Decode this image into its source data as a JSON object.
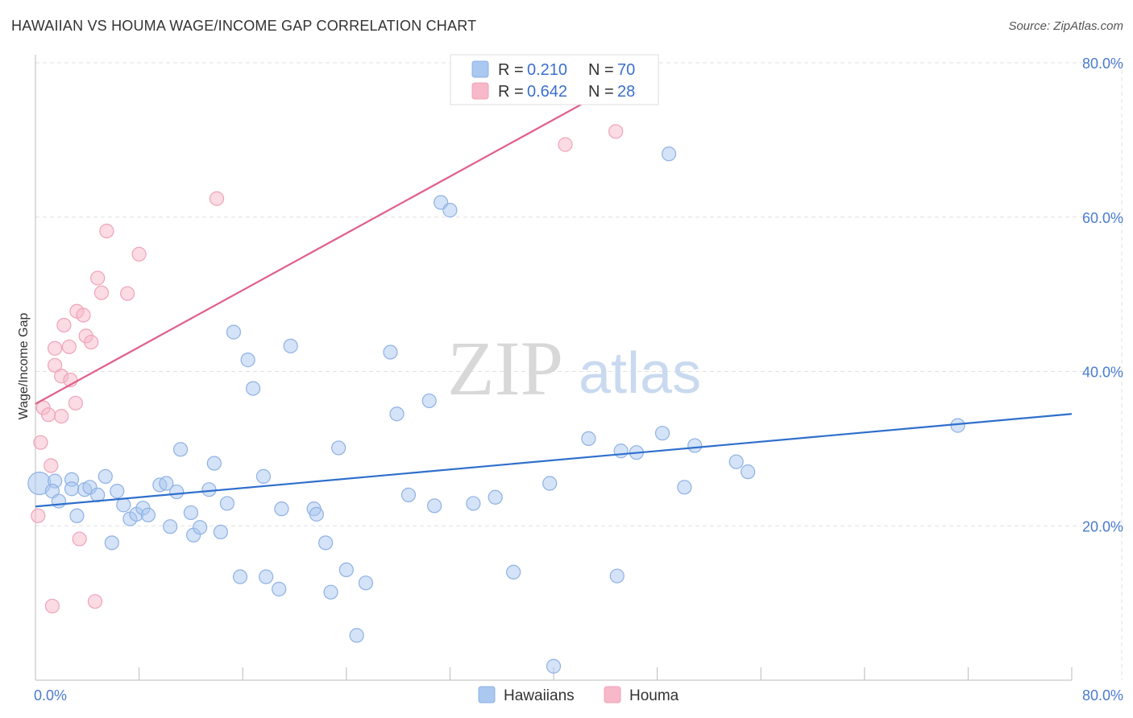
{
  "title": "HAWAIIAN VS HOUMA WAGE/INCOME GAP CORRELATION CHART",
  "source": "Source: ZipAtlas.com",
  "watermark": {
    "part1": "ZIP",
    "part2": "atlas"
  },
  "colors": {
    "hawaiians_fill": "#aac8f0",
    "hawaiians_line": "#2f6fcc",
    "houma_fill": "#f7b8ca",
    "houma_line": "#e0608a",
    "tick": "#4a7bd0",
    "grid": "#e0e0e0"
  },
  "legend": {
    "r_label": "R =",
    "n_label": "N =",
    "rows": [
      {
        "r": "0.210",
        "n": "70"
      },
      {
        "r": "0.642",
        "n": "28"
      }
    ]
  },
  "chart_data": {
    "type": "scatter",
    "xlabel": "",
    "ylabel": "Wage/Income Gap",
    "xlim": [
      0,
      80
    ],
    "ylim": [
      0,
      80
    ],
    "x_tick_labels": [
      "0.0%",
      "80.0%"
    ],
    "y_tick_labels": [
      "20.0%",
      "40.0%",
      "60.0%",
      "80.0%"
    ],
    "y_ticks": [
      20,
      40,
      60,
      80
    ],
    "grid": true,
    "legend_position": "top-center",
    "series": [
      {
        "name": "Hawaiians",
        "trend": [
          [
            0,
            22.5
          ],
          [
            80,
            34.5
          ]
        ],
        "points": [
          [
            0.3,
            25.5
          ],
          [
            1.5,
            25.8
          ],
          [
            2.8,
            26
          ],
          [
            1.3,
            24.5
          ],
          [
            1.8,
            23.2
          ],
          [
            2.8,
            24.8
          ],
          [
            3.2,
            21.3
          ],
          [
            3.8,
            24.7
          ],
          [
            4.2,
            25
          ],
          [
            4.8,
            24
          ],
          [
            5.4,
            26.4
          ],
          [
            5.9,
            17.8
          ],
          [
            6.3,
            24.5
          ],
          [
            6.8,
            22.7
          ],
          [
            7.3,
            20.9
          ],
          [
            7.8,
            21.5
          ],
          [
            8.3,
            22.3
          ],
          [
            8.7,
            21.4
          ],
          [
            9.6,
            25.3
          ],
          [
            10.1,
            25.5
          ],
          [
            10.4,
            19.9
          ],
          [
            10.9,
            24.4
          ],
          [
            11.2,
            29.9
          ],
          [
            12.0,
            21.7
          ],
          [
            12.2,
            18.8
          ],
          [
            12.7,
            19.8
          ],
          [
            13.4,
            24.7
          ],
          [
            13.8,
            28.1
          ],
          [
            14.3,
            19.2
          ],
          [
            14.8,
            22.9
          ],
          [
            15.3,
            45.1
          ],
          [
            15.8,
            13.4
          ],
          [
            16.4,
            41.5
          ],
          [
            16.8,
            37.8
          ],
          [
            17.6,
            26.4
          ],
          [
            17.8,
            13.4
          ],
          [
            18.8,
            11.8
          ],
          [
            19.0,
            22.2
          ],
          [
            19.7,
            43.3
          ],
          [
            21.5,
            22.2
          ],
          [
            21.7,
            21.5
          ],
          [
            22.4,
            17.8
          ],
          [
            22.8,
            11.4
          ],
          [
            23.4,
            30.1
          ],
          [
            24.0,
            14.3
          ],
          [
            24.8,
            5.8
          ],
          [
            25.5,
            12.6
          ],
          [
            27.4,
            42.5
          ],
          [
            27.9,
            34.5
          ],
          [
            28.8,
            24
          ],
          [
            30.4,
            36.2
          ],
          [
            30.8,
            22.6
          ],
          [
            31.3,
            61.9
          ],
          [
            32.0,
            60.9
          ],
          [
            33.8,
            22.9
          ],
          [
            35.5,
            23.7
          ],
          [
            36.9,
            14
          ],
          [
            39.7,
            25.5
          ],
          [
            40.0,
            1.8
          ],
          [
            42.7,
            31.3
          ],
          [
            44.9,
            13.5
          ],
          [
            45.2,
            29.7
          ],
          [
            46.4,
            29.5
          ],
          [
            48.4,
            32
          ],
          [
            48.9,
            68.2
          ],
          [
            50.1,
            25
          ],
          [
            50.9,
            30.4
          ],
          [
            54.1,
            28.3
          ],
          [
            55.0,
            27
          ],
          [
            71.2,
            33
          ]
        ]
      },
      {
        "name": "Houma",
        "trend": [
          [
            0,
            35.8
          ],
          [
            48,
            80
          ]
        ],
        "points": [
          [
            0.2,
            21.3
          ],
          [
            0.4,
            30.8
          ],
          [
            0.6,
            35.3
          ],
          [
            1.0,
            34.4
          ],
          [
            1.2,
            27.8
          ],
          [
            1.3,
            9.6
          ],
          [
            1.5,
            40.8
          ],
          [
            1.5,
            43
          ],
          [
            2.0,
            34.2
          ],
          [
            2.0,
            39.4
          ],
          [
            2.2,
            46
          ],
          [
            2.6,
            43.2
          ],
          [
            2.7,
            38.9
          ],
          [
            3.1,
            35.9
          ],
          [
            3.2,
            47.8
          ],
          [
            3.4,
            18.3
          ],
          [
            3.7,
            47.3
          ],
          [
            3.9,
            44.6
          ],
          [
            4.3,
            43.8
          ],
          [
            4.6,
            10.2
          ],
          [
            4.8,
            52.1
          ],
          [
            5.1,
            50.2
          ],
          [
            5.5,
            58.2
          ],
          [
            7.1,
            50.1
          ],
          [
            8.0,
            55.2
          ],
          [
            14.0,
            62.4
          ],
          [
            40.9,
            69.4
          ],
          [
            44.8,
            71.1
          ]
        ]
      }
    ]
  }
}
